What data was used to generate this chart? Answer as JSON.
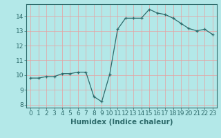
{
  "x": [
    0,
    1,
    2,
    3,
    4,
    5,
    6,
    7,
    8,
    9,
    10,
    11,
    12,
    13,
    14,
    15,
    16,
    17,
    18,
    19,
    20,
    21,
    22,
    23
  ],
  "y": [
    9.8,
    9.8,
    9.9,
    9.9,
    10.1,
    10.1,
    10.2,
    10.2,
    8.55,
    8.2,
    10.05,
    13.1,
    13.85,
    13.85,
    13.85,
    14.45,
    14.2,
    14.1,
    13.85,
    13.5,
    13.15,
    13.0,
    13.1,
    12.75
  ],
  "xlabel": "Humidex (Indice chaleur)",
  "ylim": [
    7.8,
    14.8
  ],
  "xlim": [
    -0.5,
    23.5
  ],
  "yticks": [
    8,
    9,
    10,
    11,
    12,
    13,
    14
  ],
  "xticks": [
    0,
    1,
    2,
    3,
    4,
    5,
    6,
    7,
    8,
    9,
    10,
    11,
    12,
    13,
    14,
    15,
    16,
    17,
    18,
    19,
    20,
    21,
    22,
    23
  ],
  "line_color": "#2d6b6b",
  "marker": "+",
  "bg_color": "#b3e8e8",
  "grid_major_color": "#e8a0a0",
  "tick_label_fontsize": 6.5,
  "xlabel_fontsize": 7.5,
  "xlabel_color": "#2d6b6b"
}
